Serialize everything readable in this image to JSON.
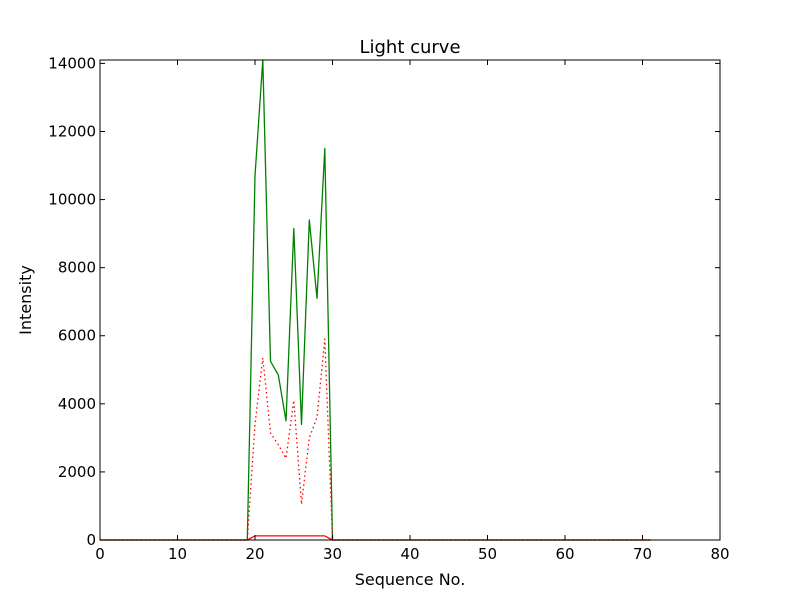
{
  "chart_data": {
    "type": "line",
    "title": "Light curve",
    "xlabel": "Sequence No.",
    "ylabel": "Intensity",
    "xlim": [
      0,
      80
    ],
    "ylim": [
      0,
      14100
    ],
    "xticks": [
      0,
      10,
      20,
      30,
      40,
      50,
      60,
      70,
      80
    ],
    "yticks": [
      0,
      2000,
      4000,
      6000,
      8000,
      10000,
      12000,
      14000
    ],
    "grid": false,
    "legend": "none",
    "series": [
      {
        "color": "#008000",
        "style": "solid",
        "points": [
          [
            0,
            0
          ],
          [
            19,
            0
          ],
          [
            20,
            10700
          ],
          [
            21,
            14100
          ],
          [
            22,
            5250
          ],
          [
            23,
            4850
          ],
          [
            24,
            3500
          ],
          [
            25,
            9150
          ],
          [
            26,
            3400
          ],
          [
            27,
            9400
          ],
          [
            28,
            7100
          ],
          [
            29,
            11500
          ],
          [
            30,
            0
          ],
          [
            71,
            0
          ]
        ]
      },
      {
        "color": "#ff0000",
        "style": "dotted",
        "points": [
          [
            0,
            0
          ],
          [
            19,
            0
          ],
          [
            20,
            3400
          ],
          [
            21,
            5350
          ],
          [
            22,
            3150
          ],
          [
            23,
            2800
          ],
          [
            24,
            2400
          ],
          [
            25,
            4100
          ],
          [
            26,
            1050
          ],
          [
            27,
            3000
          ],
          [
            28,
            3600
          ],
          [
            29,
            5900
          ],
          [
            30,
            0
          ],
          [
            71,
            0
          ]
        ]
      },
      {
        "color": "#ff0000",
        "style": "solid",
        "points": [
          [
            0,
            0
          ],
          [
            19,
            0
          ],
          [
            20,
            120
          ],
          [
            21,
            120
          ],
          [
            22,
            120
          ],
          [
            23,
            120
          ],
          [
            24,
            120
          ],
          [
            25,
            120
          ],
          [
            26,
            120
          ],
          [
            27,
            120
          ],
          [
            28,
            120
          ],
          [
            29,
            120
          ],
          [
            30,
            0
          ],
          [
            71,
            0
          ]
        ]
      }
    ]
  }
}
